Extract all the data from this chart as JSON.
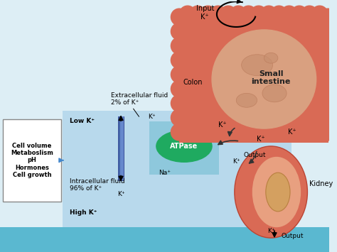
{
  "bg_color": "#ddeef5",
  "bottom_bar_color": "#5ab8d0",
  "cell_box_color": "#ffffff",
  "blue_fluid_color": "#b8d9ec",
  "atpase_box_color": "#8ec8dc",
  "atpase_oval_color": "#1faa60",
  "channel_dark": "#4466aa",
  "channel_light": "#6688cc",
  "intestine_outer": "#d96a55",
  "intestine_inner": "#e8956a",
  "intestine_fill": "#d9a080",
  "kidney_outer": "#d96a55",
  "kidney_inner": "#e8a080",
  "kidney_pelvis": "#c8a050",
  "labels": {
    "input_k": "Input\nK⁺",
    "colon": "Colon",
    "small_intestine": "Small\nintestine",
    "extracellular": "Extracellular fluid\n2% of K⁺",
    "intracellular": "Intracellular fluid\n96% of K⁺",
    "low_k": "Low K⁺",
    "high_k": "High K⁺",
    "atpase": "ATPase",
    "na_plus": "Na⁺",
    "kidney": "Kidney",
    "output": "Output",
    "cell_volume": "Cell volume\nMetaboslism\npH\nHormones\nCell growth"
  }
}
